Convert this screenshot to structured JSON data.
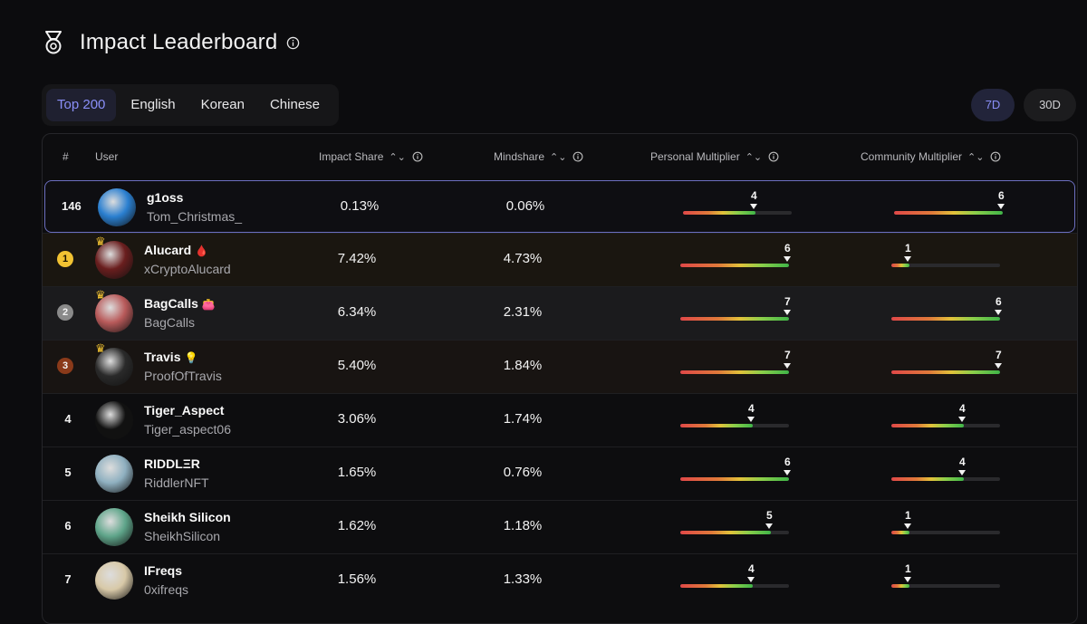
{
  "header": {
    "title": "Impact Leaderboard"
  },
  "tabs": [
    "Top 200",
    "English",
    "Korean",
    "Chinese"
  ],
  "active_tab": "Top 200",
  "periods": [
    "7D",
    "30D"
  ],
  "active_period": "7D",
  "columns": {
    "rank": "#",
    "user": "User",
    "impact_share": "Impact Share",
    "mindshare": "Mindshare",
    "personal_multiplier": "Personal Multiplier",
    "community_multiplier": "Community Multiplier"
  },
  "multiplier_scale_max": 6,
  "colors": {
    "accent": "#8a8ff8",
    "gold": "#f1c232",
    "silver": "#8a8a8a",
    "bronze": "#8a3a1a"
  },
  "rows": [
    {
      "rank": "146",
      "name": "g1oss",
      "handle": "Tom_Christmas_",
      "impact_share": "0.13%",
      "mindshare": "0.06%",
      "personal_multiplier": 4,
      "community_multiplier": 6,
      "highlight": true
    },
    {
      "rank": "1",
      "name": "Alucard",
      "emoji": "🩸",
      "handle": "xCryptoAlucard",
      "impact_share": "7.42%",
      "mindshare": "4.73%",
      "personal_multiplier": 6,
      "community_multiplier": 1
    },
    {
      "rank": "2",
      "name": "BagCalls",
      "emoji": "👛",
      "handle": "BagCalls",
      "impact_share": "6.34%",
      "mindshare": "2.31%",
      "personal_multiplier": 7,
      "community_multiplier": 6
    },
    {
      "rank": "3",
      "name": "Travis",
      "emoji": "💡",
      "handle": "ProofOfTravis",
      "impact_share": "5.40%",
      "mindshare": "1.84%",
      "personal_multiplier": 7,
      "community_multiplier": 7
    },
    {
      "rank": "4",
      "name": "Tiger_Aspect",
      "handle": "Tiger_aspect06",
      "impact_share": "3.06%",
      "mindshare": "1.74%",
      "personal_multiplier": 4,
      "community_multiplier": 4
    },
    {
      "rank": "5",
      "name": "RIDDLΞR",
      "handle": "RiddlerNFT",
      "impact_share": "1.65%",
      "mindshare": "0.76%",
      "personal_multiplier": 6,
      "community_multiplier": 4
    },
    {
      "rank": "6",
      "name": "Sheikh Silicon",
      "handle": "SheikhSilicon",
      "impact_share": "1.62%",
      "mindshare": "1.18%",
      "personal_multiplier": 5,
      "community_multiplier": 1
    },
    {
      "rank": "7",
      "name": "IFreqs",
      "handle": "0xifreqs",
      "impact_share": "1.56%",
      "mindshare": "1.33%",
      "personal_multiplier": 4,
      "community_multiplier": 1
    }
  ]
}
